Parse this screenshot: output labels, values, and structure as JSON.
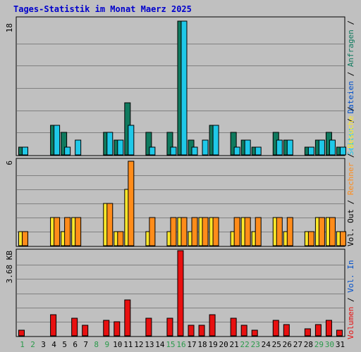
{
  "title": "Tages-Statistik im Monat Maerz 2025",
  "colors": {
    "background": "#c0c0c0",
    "title": "#0000cc",
    "frame": "#000000",
    "gridline": "#808080",
    "anfragen": "#0f7a5e",
    "dateien": "#1fc8e8",
    "seiten": "#1fc8e8",
    "besuche": "#ffe82a",
    "rechner": "#ff8c1a",
    "volumen": "#e81010",
    "weekend_label": "#2a9a4a",
    "weekday_label": "#000000",
    "legend_blue": "#0050cc",
    "legend_sep": "#000000"
  },
  "chart_data": [
    {
      "type": "bar",
      "panel": "top",
      "categories": [
        "1",
        "2",
        "3",
        "4",
        "5",
        "6",
        "7",
        "8",
        "9",
        "10",
        "11",
        "12",
        "13",
        "14",
        "15",
        "16",
        "17",
        "18",
        "19",
        "20",
        "21",
        "22",
        "23",
        "24",
        "25",
        "26",
        "27",
        "28",
        "29",
        "30",
        "31"
      ],
      "weekend_days": [
        "1",
        "2",
        "8",
        "9",
        "15",
        "16",
        "22",
        "23",
        "29",
        "30"
      ],
      "ytick_label": "18",
      "ylim": [
        0,
        18
      ],
      "series": [
        {
          "name": "Anfragen",
          "values": [
            1,
            0,
            0,
            4,
            3,
            0,
            0,
            0,
            3,
            2,
            7,
            0,
            3,
            0,
            3,
            18,
            2,
            0,
            4,
            0,
            3,
            2,
            1,
            0,
            3,
            2,
            0,
            1,
            2,
            3,
            1
          ]
        },
        {
          "name": "Dateien",
          "values": [
            1,
            0,
            0,
            4,
            1,
            2,
            0,
            0,
            3,
            2,
            4,
            0,
            1,
            0,
            1,
            18,
            1,
            2,
            4,
            0,
            1,
            2,
            1,
            0,
            2,
            2,
            0,
            1,
            2,
            2,
            1
          ]
        }
      ],
      "legend": [
        {
          "name": "Anfragen",
          "color": "#0f7a5e"
        },
        {
          "name": "Dateien",
          "color": "#0050cc"
        },
        {
          "name": "Seiten",
          "color": "#1fc8e8"
        }
      ]
    },
    {
      "type": "bar",
      "panel": "middle",
      "ytick_label": "6",
      "ylim": [
        0,
        6
      ],
      "series": [
        {
          "name": "Besuche",
          "values": [
            1,
            0,
            0,
            2,
            1,
            2,
            0,
            0,
            3,
            1,
            4,
            0,
            1,
            0,
            1,
            2,
            1,
            2,
            2,
            0,
            1,
            2,
            1,
            0,
            2,
            1,
            0,
            1,
            2,
            2,
            1
          ]
        },
        {
          "name": "Rechner",
          "values": [
            1,
            0,
            0,
            2,
            2,
            2,
            0,
            0,
            3,
            1,
            6,
            0,
            2,
            0,
            2,
            2,
            2,
            2,
            2,
            0,
            2,
            2,
            2,
            0,
            2,
            2,
            0,
            1,
            2,
            2,
            1
          ]
        }
      ],
      "legend": [
        {
          "name": "Besuche",
          "color": "#ffe82a"
        },
        {
          "name": "Rechner",
          "color": "#ff8c1a"
        },
        {
          "name": "Vol. Out",
          "color": "#000000"
        }
      ]
    },
    {
      "type": "bar",
      "panel": "bottom",
      "ytick_label": "3.68 KB",
      "ylim": [
        0,
        3.68
      ],
      "series": [
        {
          "name": "Volumen",
          "values": [
            0.25,
            0,
            0,
            0.9,
            0,
            0.75,
            0.45,
            0,
            0.68,
            0.6,
            1.55,
            0,
            0.75,
            0,
            0.75,
            3.68,
            0.45,
            0.45,
            0.9,
            0,
            0.75,
            0.45,
            0.25,
            0,
            0.68,
            0.5,
            0,
            0.3,
            0.5,
            0.68,
            0.25
          ]
        }
      ],
      "legend": [
        {
          "name": "Vol. In",
          "color": "#0050cc"
        },
        {
          "name": "Volumen",
          "color": "#e81010"
        }
      ]
    }
  ]
}
